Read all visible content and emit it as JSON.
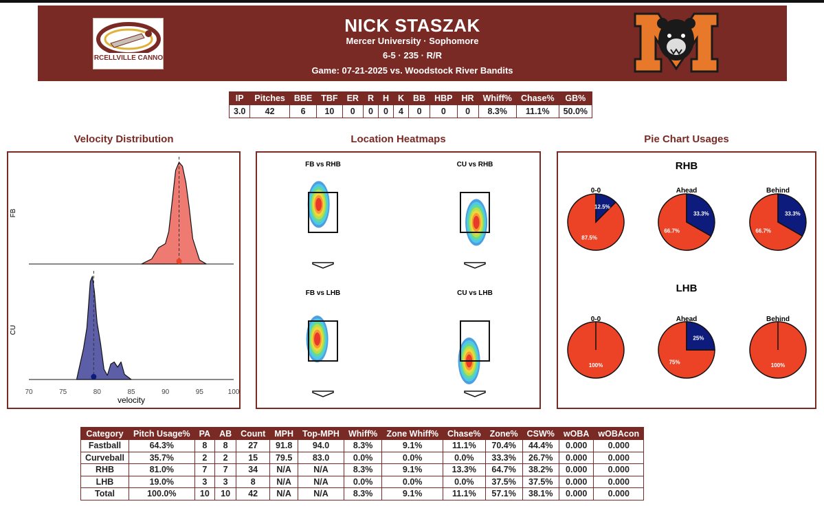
{
  "colors": {
    "header_bg": "#7a2a25",
    "fastball": "#ee7a72",
    "curveball": "#5c5fa8",
    "pie_red": "#ec4326",
    "pie_blue": "#0d1b7d"
  },
  "header": {
    "name": "NICK STASZAK",
    "school": "Mercer University · Sophomore",
    "bio": "6-5 · 235 · R/R",
    "game": "Game: 07-21-2025 vs. Woodstock River Bandits",
    "left_logo_text": "PURCELLVILLE CANNONS",
    "right_logo_text": "M"
  },
  "summary_table": {
    "headers": [
      "IP",
      "Pitches",
      "BBE",
      "TBF",
      "ER",
      "R",
      "H",
      "K",
      "BB",
      "HBP",
      "HR",
      "Whiff%",
      "Chase%",
      "GB%"
    ],
    "values": [
      "3.0",
      "42",
      "6",
      "10",
      "0",
      "0",
      "0",
      "4",
      "0",
      "0",
      "0",
      "8.3%",
      "11.1%",
      "50.0%"
    ]
  },
  "sections": {
    "velocity": "Velocity Distribution",
    "heatmaps": "Location Heatmaps",
    "pies": "Pie Chart Usages"
  },
  "chart_data": [
    {
      "type": "area",
      "title": "Velocity Distribution",
      "xlabel": "velocity",
      "xlim": [
        70,
        100
      ],
      "xticks": [
        "70",
        "75",
        "80",
        "85",
        "90",
        "95",
        "100"
      ],
      "series": [
        {
          "name": "FB",
          "mean": 92.0,
          "x": [
            86.5,
            88,
            89,
            89.5,
            90,
            90.5,
            91,
            91.5,
            92,
            92.5,
            93,
            93.5,
            94,
            95,
            96
          ],
          "y": [
            0.0,
            0.05,
            0.16,
            0.18,
            0.2,
            0.32,
            0.62,
            0.92,
            1.0,
            0.96,
            0.8,
            0.55,
            0.25,
            0.04,
            0.0
          ]
        },
        {
          "name": "CU",
          "mean": 79.5,
          "x": [
            77,
            78,
            78.5,
            79,
            79.3,
            79.6,
            80,
            80.5,
            81,
            81.5,
            82,
            82.5,
            83,
            83.5,
            84,
            85
          ],
          "y": [
            0.0,
            0.3,
            0.5,
            0.95,
            1.0,
            0.85,
            0.55,
            0.35,
            0.1,
            0.04,
            0.15,
            0.17,
            0.12,
            0.17,
            0.05,
            0.0
          ]
        }
      ]
    },
    {
      "type": "heatmap",
      "title": "Location Heatmaps",
      "panels": [
        {
          "title": "FB vs RHB",
          "hot_x": 0.35,
          "hot_y": 0.3
        },
        {
          "title": "CU vs RHB",
          "hot_x": 0.55,
          "hot_y": 0.75
        },
        {
          "title": "FB vs LHB",
          "hot_x": 0.3,
          "hot_y": 0.45
        },
        {
          "title": "CU vs LHB",
          "hot_x": 0.3,
          "hot_y": 1.0
        }
      ]
    },
    {
      "type": "pie",
      "title": "Pie Chart Usages",
      "groups": [
        {
          "label": "RHB",
          "pies": [
            {
              "label": "0-0",
              "slices": [
                {
                  "name": "FB",
                  "value": 87.5,
                  "label": "87.5%"
                },
                {
                  "name": "CU",
                  "value": 12.5,
                  "label": "12.5%"
                }
              ]
            },
            {
              "label": "Ahead",
              "slices": [
                {
                  "name": "FB",
                  "value": 66.7,
                  "label": "66.7%"
                },
                {
                  "name": "CU",
                  "value": 33.3,
                  "label": "33.3%"
                }
              ]
            },
            {
              "label": "Behind",
              "slices": [
                {
                  "name": "FB",
                  "value": 66.7,
                  "label": "66.7%"
                },
                {
                  "name": "CU",
                  "value": 33.3,
                  "label": "33.3%"
                }
              ]
            }
          ]
        },
        {
          "label": "LHB",
          "pies": [
            {
              "label": "0-0",
              "slices": [
                {
                  "name": "FB",
                  "value": 100,
                  "label": "100%"
                }
              ]
            },
            {
              "label": "Ahead",
              "slices": [
                {
                  "name": "FB",
                  "value": 75,
                  "label": "75%"
                },
                {
                  "name": "CU",
                  "value": 25,
                  "label": "25%"
                }
              ]
            },
            {
              "label": "Behind",
              "slices": [
                {
                  "name": "FB",
                  "value": 100,
                  "label": "100%"
                }
              ]
            }
          ]
        }
      ]
    }
  ],
  "pitch_table": {
    "headers": [
      "Category",
      "Pitch Usage%",
      "PA",
      "AB",
      "Count",
      "MPH",
      "Top-MPH",
      "Whiff%",
      "Zone Whiff%",
      "Chase%",
      "Zone%",
      "CSW%",
      "wOBA",
      "wOBAcon"
    ],
    "rows": [
      [
        "Fastball",
        "64.3%",
        "8",
        "8",
        "27",
        "91.8",
        "94.0",
        "8.3%",
        "9.1%",
        "11.1%",
        "70.4%",
        "44.4%",
        "0.000",
        "0.000"
      ],
      [
        "Curveball",
        "35.7%",
        "2",
        "2",
        "15",
        "79.5",
        "83.0",
        "0.0%",
        "0.0%",
        "0.0%",
        "33.3%",
        "26.7%",
        "0.000",
        "0.000"
      ],
      [
        "RHB",
        "81.0%",
        "7",
        "7",
        "34",
        "N/A",
        "N/A",
        "8.3%",
        "9.1%",
        "13.3%",
        "64.7%",
        "38.2%",
        "0.000",
        "0.000"
      ],
      [
        "LHB",
        "19.0%",
        "3",
        "3",
        "8",
        "N/A",
        "N/A",
        "0.0%",
        "0.0%",
        "0.0%",
        "37.5%",
        "37.5%",
        "0.000",
        "0.000"
      ],
      [
        "Total",
        "100.0%",
        "10",
        "10",
        "42",
        "N/A",
        "N/A",
        "8.3%",
        "9.1%",
        "11.1%",
        "57.1%",
        "38.1%",
        "0.000",
        "0.000"
      ]
    ]
  }
}
